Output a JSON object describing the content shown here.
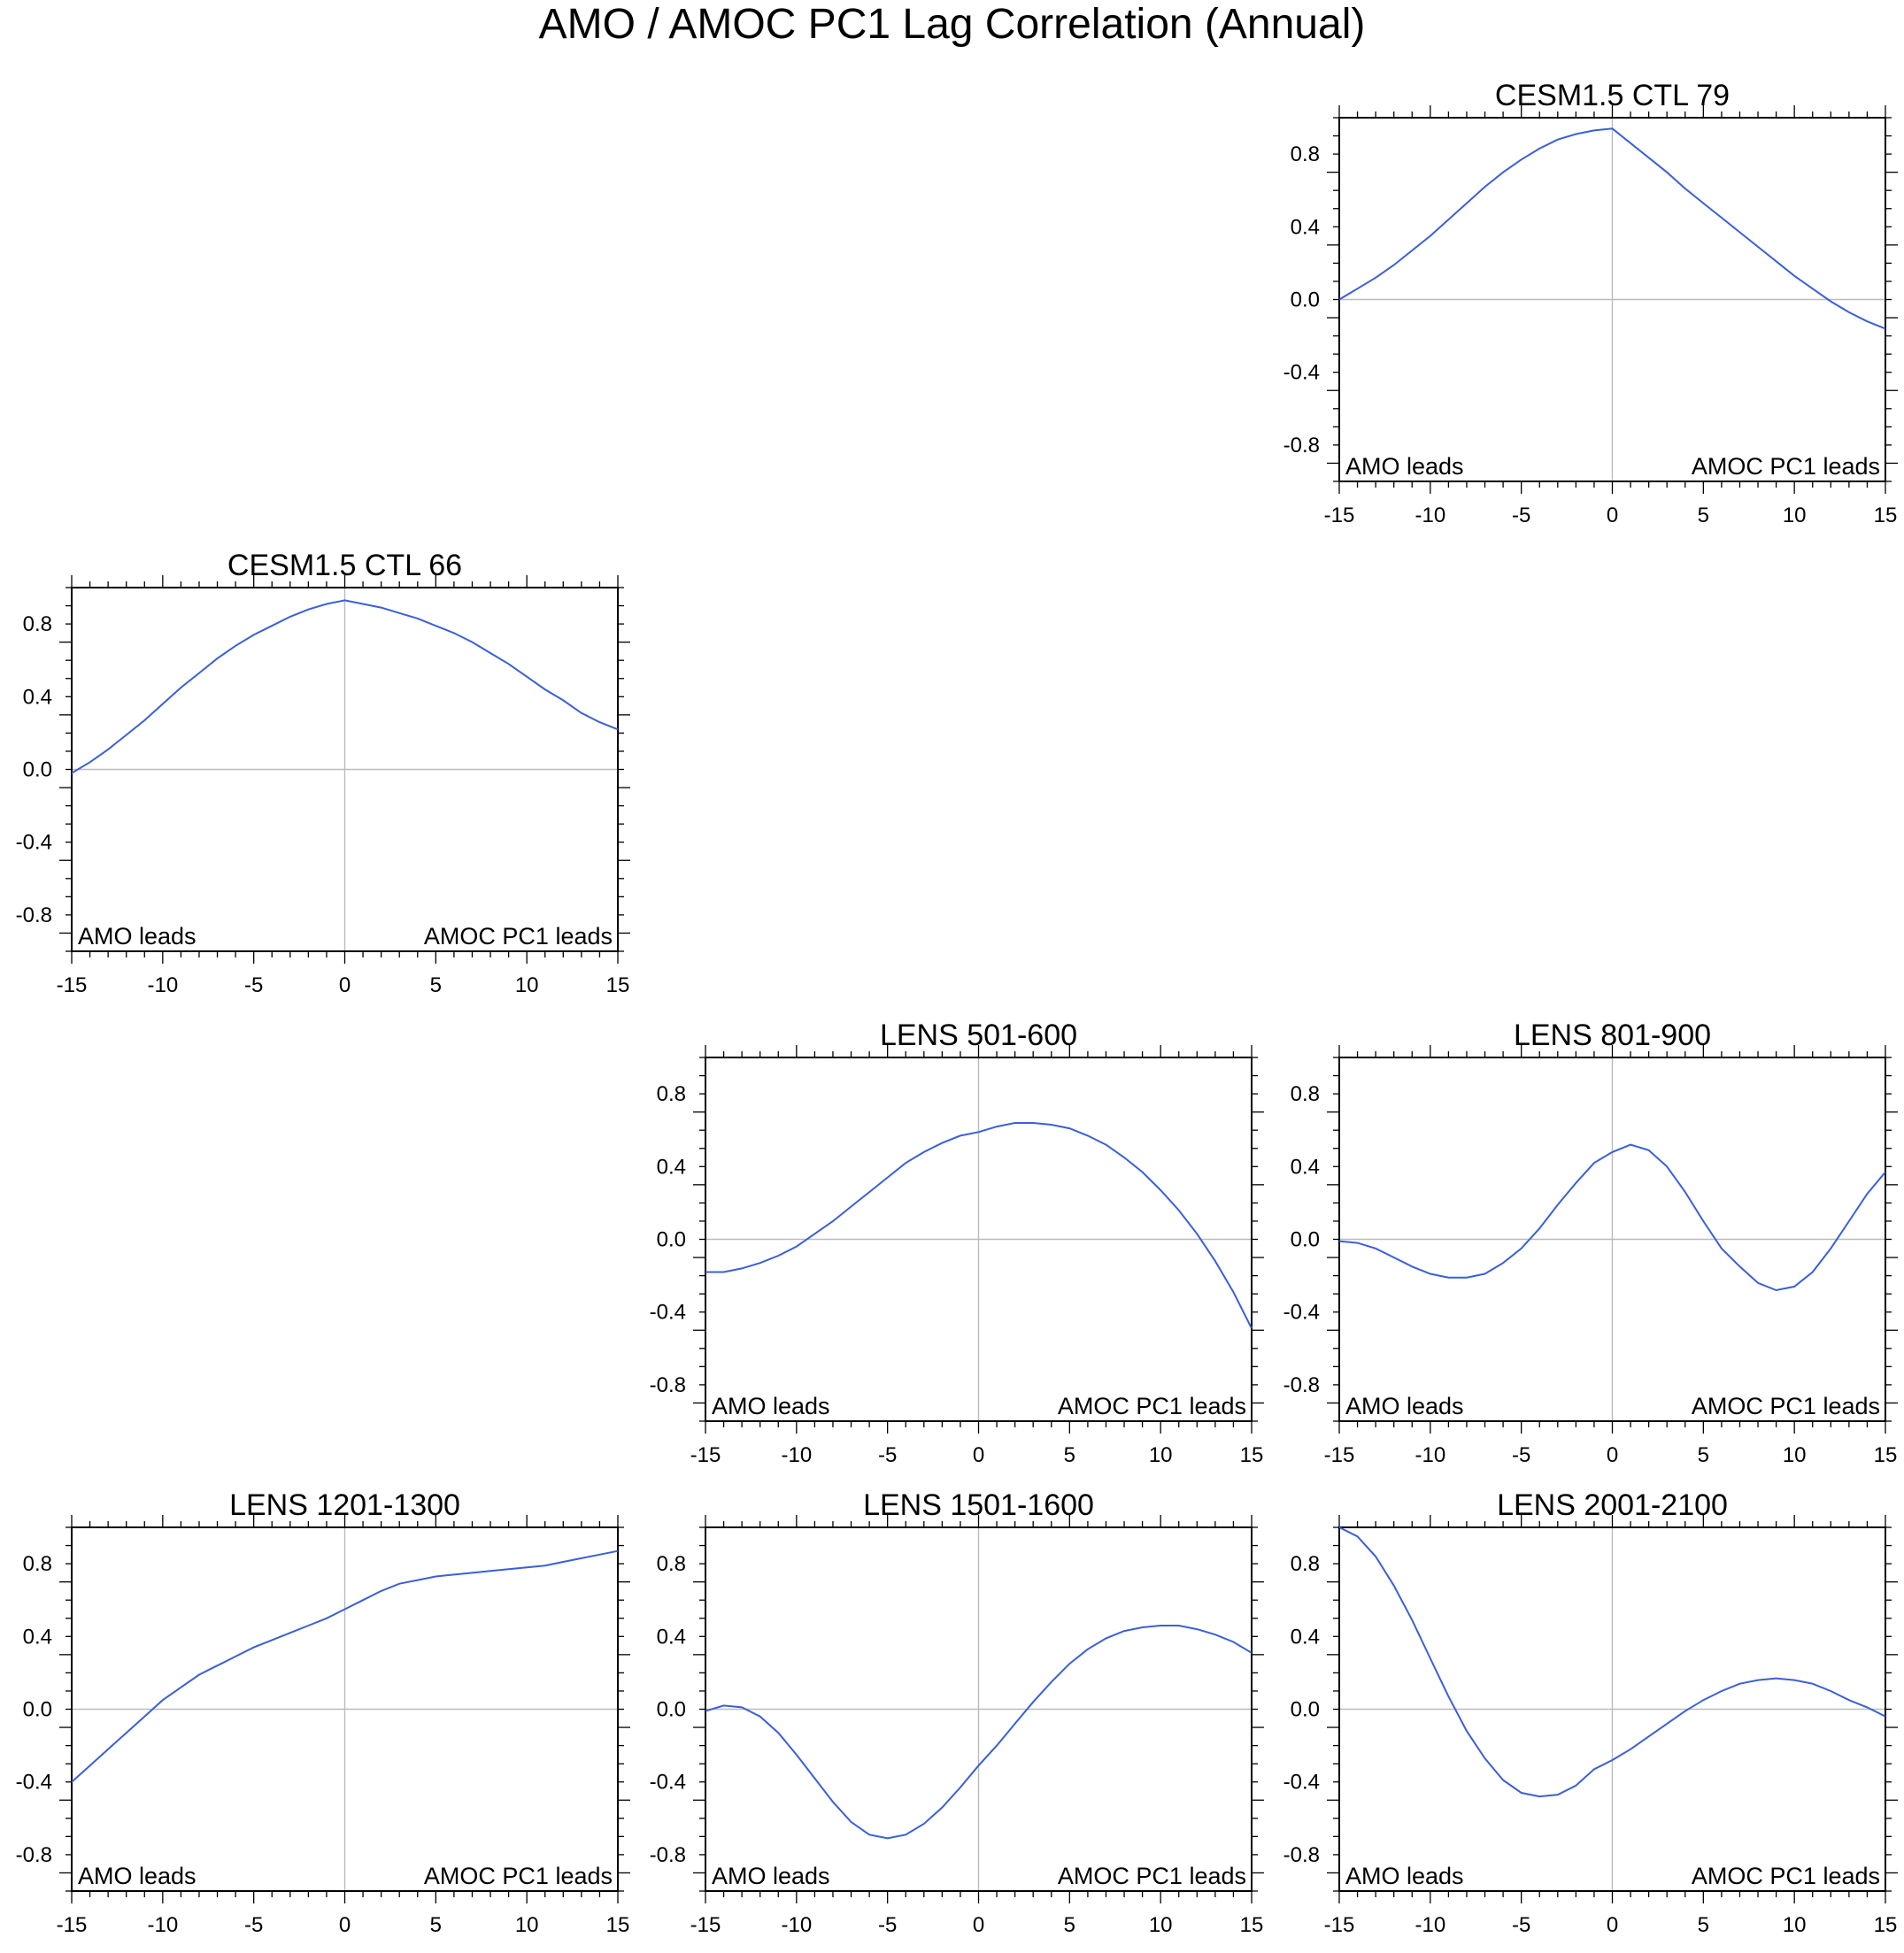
{
  "title": "AMO / AMOC PC1 Lag Correlation (Annual)",
  "colors": {
    "line": "#3a5fd9",
    "zero_lines": "#bbbbbb",
    "axes": "#000000"
  },
  "chart_data": [
    {
      "type": "line",
      "title": "CESM1.5 CTL 79",
      "panel": "row1-col3",
      "xlim": [
        -15,
        15
      ],
      "ylim": [
        -1,
        1
      ],
      "x_ticks": [
        "-15",
        "-10",
        "-5",
        "0",
        "5",
        "10",
        "15"
      ],
      "y_ticks": [
        "0.8",
        "0.4",
        "0.0",
        "-0.4",
        "-0.8"
      ],
      "left_annotation": "AMO leads",
      "right_annotation": "AMOC PC1 leads",
      "x": [
        -15,
        -14,
        -13,
        -12,
        -11,
        -10,
        -9,
        -8,
        -7,
        -6,
        -5,
        -4,
        -3,
        -2,
        -1,
        0,
        1,
        2,
        3,
        4,
        5,
        6,
        7,
        8,
        9,
        10,
        11,
        12,
        13,
        14,
        15
      ],
      "values": [
        0.0,
        0.06,
        0.12,
        0.19,
        0.27,
        0.35,
        0.44,
        0.53,
        0.62,
        0.7,
        0.77,
        0.83,
        0.88,
        0.91,
        0.93,
        0.94,
        0.86,
        0.78,
        0.7,
        0.61,
        0.53,
        0.45,
        0.37,
        0.29,
        0.21,
        0.13,
        0.06,
        -0.01,
        -0.07,
        -0.12,
        -0.16
      ]
    },
    {
      "type": "line",
      "title": "CESM1.5 CTL 66",
      "panel": "row2-col1",
      "xlim": [
        -15,
        15
      ],
      "ylim": [
        -1,
        1
      ],
      "x_ticks": [
        "-15",
        "-10",
        "-5",
        "0",
        "5",
        "10",
        "15"
      ],
      "y_ticks": [
        "0.8",
        "0.4",
        "0.0",
        "-0.4",
        "-0.8"
      ],
      "left_annotation": "AMO leads",
      "right_annotation": "AMOC PC1 leads",
      "x": [
        -15,
        -14,
        -13,
        -12,
        -11,
        -10,
        -9,
        -8,
        -7,
        -6,
        -5,
        -4,
        -3,
        -2,
        -1,
        0,
        1,
        2,
        3,
        4,
        5,
        6,
        7,
        8,
        9,
        10,
        11,
        12,
        13,
        14,
        15
      ],
      "values": [
        -0.02,
        0.04,
        0.11,
        0.19,
        0.27,
        0.36,
        0.45,
        0.53,
        0.61,
        0.68,
        0.74,
        0.79,
        0.84,
        0.88,
        0.91,
        0.93,
        0.91,
        0.89,
        0.86,
        0.83,
        0.79,
        0.75,
        0.7,
        0.64,
        0.58,
        0.51,
        0.44,
        0.38,
        0.31,
        0.26,
        0.22
      ]
    },
    {
      "type": "line",
      "title": "LENS 501-600",
      "panel": "row3-col2",
      "xlim": [
        -15,
        15
      ],
      "ylim": [
        -1,
        1
      ],
      "x_ticks": [
        "-15",
        "-10",
        "-5",
        "0",
        "5",
        "10",
        "15"
      ],
      "y_ticks": [
        "0.8",
        "0.4",
        "0.0",
        "-0.4",
        "-0.8"
      ],
      "left_annotation": "AMO leads",
      "right_annotation": "AMOC PC1 leads",
      "x": [
        -15,
        -14,
        -13,
        -12,
        -11,
        -10,
        -9,
        -8,
        -7,
        -6,
        -5,
        -4,
        -3,
        -2,
        -1,
        0,
        1,
        2,
        3,
        4,
        5,
        6,
        7,
        8,
        9,
        10,
        11,
        12,
        13,
        14,
        15
      ],
      "values": [
        -0.18,
        -0.18,
        -0.16,
        -0.13,
        -0.09,
        -0.04,
        0.03,
        0.1,
        0.18,
        0.26,
        0.34,
        0.42,
        0.48,
        0.53,
        0.57,
        0.59,
        0.62,
        0.64,
        0.64,
        0.63,
        0.61,
        0.57,
        0.52,
        0.45,
        0.37,
        0.27,
        0.16,
        0.03,
        -0.12,
        -0.29,
        -0.49
      ]
    },
    {
      "type": "line",
      "title": "LENS 801-900",
      "panel": "row3-col3",
      "xlim": [
        -15,
        15
      ],
      "ylim": [
        -1,
        1
      ],
      "x_ticks": [
        "-15",
        "-10",
        "-5",
        "0",
        "5",
        "10",
        "15"
      ],
      "y_ticks": [
        "0.8",
        "0.4",
        "0.0",
        "-0.4",
        "-0.8"
      ],
      "left_annotation": "AMO leads",
      "right_annotation": "AMOC PC1 leads",
      "x": [
        -15,
        -14,
        -13,
        -12,
        -11,
        -10,
        -9,
        -8,
        -7,
        -6,
        -5,
        -4,
        -3,
        -2,
        -1,
        0,
        1,
        2,
        3,
        4,
        5,
        6,
        7,
        8,
        9,
        10,
        11,
        12,
        13,
        14,
        15
      ],
      "values": [
        -0.01,
        -0.02,
        -0.05,
        -0.1,
        -0.15,
        -0.19,
        -0.21,
        -0.21,
        -0.19,
        -0.13,
        -0.05,
        0.06,
        0.19,
        0.31,
        0.42,
        0.48,
        0.52,
        0.49,
        0.4,
        0.26,
        0.1,
        -0.05,
        -0.15,
        -0.24,
        -0.28,
        -0.26,
        -0.18,
        -0.05,
        0.1,
        0.25,
        0.37
      ]
    },
    {
      "type": "line",
      "title": "LENS 1201-1300",
      "panel": "row4-col1",
      "xlim": [
        -15,
        15
      ],
      "ylim": [
        -1,
        1
      ],
      "x_ticks": [
        "-15",
        "-10",
        "-5",
        "0",
        "5",
        "10",
        "15"
      ],
      "y_ticks": [
        "0.8",
        "0.4",
        "0.0",
        "-0.4",
        "-0.8"
      ],
      "left_annotation": "AMO leads",
      "right_annotation": "AMOC PC1 leads",
      "x": [
        -15,
        -14,
        -13,
        -12,
        -11,
        -10,
        -9,
        -8,
        -7,
        -6,
        -5,
        -4,
        -3,
        -2,
        -1,
        0,
        1,
        2,
        3,
        4,
        5,
        6,
        7,
        8,
        9,
        10,
        11,
        12,
        13,
        14,
        15
      ],
      "values": [
        -0.4,
        -0.31,
        -0.22,
        -0.13,
        -0.04,
        0.05,
        0.12,
        0.19,
        0.24,
        0.29,
        0.34,
        0.38,
        0.42,
        0.46,
        0.5,
        0.55,
        0.6,
        0.65,
        0.69,
        0.71,
        0.73,
        0.74,
        0.75,
        0.76,
        0.77,
        0.78,
        0.79,
        0.81,
        0.83,
        0.85,
        0.87
      ]
    },
    {
      "type": "line",
      "title": "LENS 1501-1600",
      "panel": "row4-col2",
      "xlim": [
        -15,
        15
      ],
      "ylim": [
        -1,
        1
      ],
      "x_ticks": [
        "-15",
        "-10",
        "-5",
        "0",
        "5",
        "10",
        "15"
      ],
      "y_ticks": [
        "0.8",
        "0.4",
        "0.0",
        "-0.4",
        "-0.8"
      ],
      "left_annotation": "AMO leads",
      "right_annotation": "AMOC PC1 leads",
      "x": [
        -15,
        -14,
        -13,
        -12,
        -11,
        -10,
        -9,
        -8,
        -7,
        -6,
        -5,
        -4,
        -3,
        -2,
        -1,
        0,
        1,
        2,
        3,
        4,
        5,
        6,
        7,
        8,
        9,
        10,
        11,
        12,
        13,
        14,
        15
      ],
      "values": [
        -0.01,
        0.02,
        0.01,
        -0.04,
        -0.13,
        -0.25,
        -0.38,
        -0.51,
        -0.62,
        -0.69,
        -0.71,
        -0.69,
        -0.63,
        -0.54,
        -0.43,
        -0.31,
        -0.2,
        -0.08,
        0.04,
        0.15,
        0.25,
        0.33,
        0.39,
        0.43,
        0.45,
        0.46,
        0.46,
        0.44,
        0.41,
        0.37,
        0.31
      ]
    },
    {
      "type": "line",
      "title": "LENS 2001-2100",
      "panel": "row4-col3",
      "xlim": [
        -15,
        15
      ],
      "ylim": [
        -1,
        1
      ],
      "x_ticks": [
        "-15",
        "-10",
        "-5",
        "0",
        "5",
        "10",
        "15"
      ],
      "y_ticks": [
        "0.8",
        "0.4",
        "0.0",
        "-0.4",
        "-0.8"
      ],
      "left_annotation": "AMO leads",
      "right_annotation": "AMOC PC1 leads",
      "x": [
        -15,
        -14,
        -13,
        -12,
        -11,
        -10,
        -9,
        -8,
        -7,
        -6,
        -5,
        -4,
        -3,
        -2,
        -1,
        0,
        1,
        2,
        3,
        4,
        5,
        6,
        7,
        8,
        9,
        10,
        11,
        12,
        13,
        14,
        15
      ],
      "values": [
        1.0,
        0.95,
        0.84,
        0.68,
        0.49,
        0.28,
        0.07,
        -0.12,
        -0.27,
        -0.39,
        -0.46,
        -0.48,
        -0.47,
        -0.42,
        -0.33,
        -0.28,
        -0.22,
        -0.15,
        -0.08,
        -0.01,
        0.05,
        0.1,
        0.14,
        0.16,
        0.17,
        0.16,
        0.14,
        0.1,
        0.05,
        0.01,
        -0.04
      ]
    }
  ]
}
